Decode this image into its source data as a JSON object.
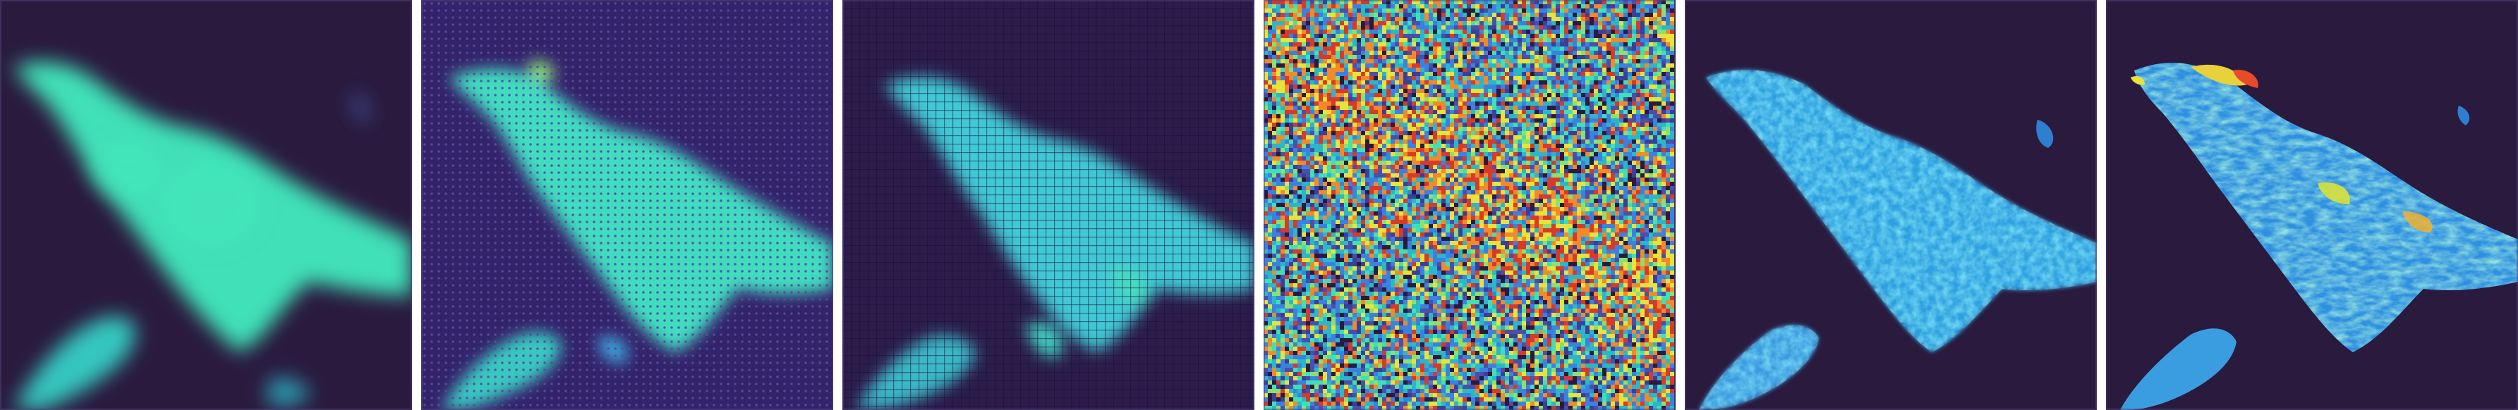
{
  "figure": {
    "panel_count": 6,
    "colormap_name": "turbo-like",
    "background_color": "#2a1a3e",
    "panels": [
      {
        "id": 1,
        "style": "smooth-blur",
        "description_name": "blurred-cloud"
      },
      {
        "id": 2,
        "style": "checkerboard-artifact",
        "description_name": "dotted-cloud"
      },
      {
        "id": 3,
        "style": "grid-artifact",
        "description_name": "gridded-cloud"
      },
      {
        "id": 4,
        "style": "pure-noise",
        "description_name": "noise"
      },
      {
        "id": 5,
        "style": "textured-detail",
        "description_name": "detailed-cloud"
      },
      {
        "id": 6,
        "style": "sharp-detail",
        "description_name": "sharp-cloud"
      }
    ],
    "colors": {
      "cyan": "#3fe0b8",
      "teal": "#2bb7c9",
      "blue": "#3b82e0",
      "dark": "#2a1a3e",
      "yellow": "#e8e23c",
      "orange": "#f08a2a",
      "red": "#d83a2a"
    }
  }
}
